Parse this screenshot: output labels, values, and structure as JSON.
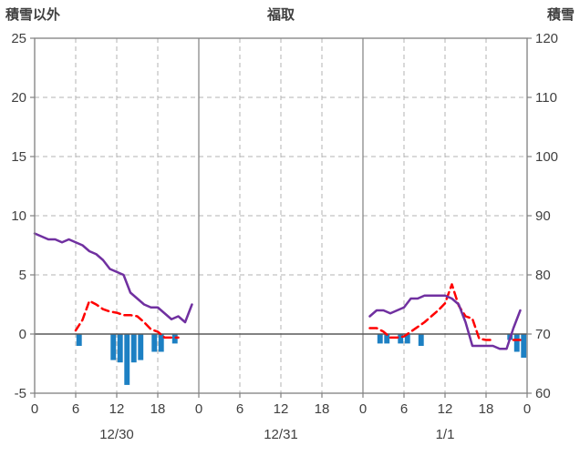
{
  "header": {
    "left_axis_title": "積雪以外",
    "station_title": "福取",
    "right_axis_title": "積雪"
  },
  "chart_data": {
    "type": "line",
    "title": "福取",
    "ylabel_left": "積雪以外",
    "ylabel_right": "積雪",
    "y_left_range": [
      -5,
      25
    ],
    "y_left_ticks": [
      25,
      20,
      15,
      10,
      5,
      0,
      -5
    ],
    "y_right_range": [
      60,
      120
    ],
    "y_right_ticks": [
      120,
      110,
      100,
      90,
      80,
      70,
      60
    ],
    "x_hours_total": 72,
    "x_tick_hours": [
      0,
      6,
      12,
      18,
      24,
      30,
      36,
      42,
      48,
      54,
      60,
      66,
      72
    ],
    "x_tick_labels": [
      "0",
      "6",
      "12",
      "18",
      "0",
      "6",
      "12",
      "18",
      "0",
      "6",
      "12",
      "18",
      "0"
    ],
    "day_boundaries_hours": [
      24,
      48
    ],
    "day_labels": [
      {
        "label": "12/30",
        "center_hour": 12
      },
      {
        "label": "12/31",
        "center_hour": 36
      },
      {
        "label": "1/1",
        "center_hour": 60
      }
    ],
    "grid": true,
    "legend": "none",
    "colors": {
      "grid": "#b3b3b3",
      "frame": "#808080",
      "zero_line": "#595959",
      "text": "#404040",
      "background": "#ffffff"
    },
    "series": [
      {
        "name": "blue-bars",
        "type": "bar",
        "axis": "left",
        "color": "#1d80c3",
        "values": [
          null,
          null,
          null,
          null,
          null,
          null,
          -1.0,
          null,
          null,
          null,
          null,
          -2.2,
          -2.4,
          -4.3,
          -2.4,
          -2.2,
          null,
          -1.5,
          -1.5,
          null,
          -0.8,
          null,
          null,
          null,
          null,
          null,
          null,
          null,
          null,
          null,
          null,
          null,
          null,
          null,
          null,
          null,
          null,
          null,
          null,
          null,
          null,
          null,
          null,
          null,
          null,
          null,
          null,
          null,
          null,
          null,
          -0.8,
          -0.8,
          null,
          -0.8,
          -0.8,
          null,
          -1.0,
          null,
          null,
          null,
          null,
          null,
          null,
          null,
          null,
          null,
          null,
          null,
          null,
          -0.5,
          -1.5,
          -2.0
        ]
      },
      {
        "name": "red-dashed-line",
        "type": "line",
        "style": "dashed",
        "axis": "left",
        "color": "#ff0000",
        "values": [
          null,
          null,
          null,
          null,
          null,
          null,
          0.3,
          1.2,
          2.8,
          2.5,
          2.1,
          1.9,
          1.8,
          1.6,
          1.6,
          1.5,
          1.0,
          0.4,
          0.2,
          -0.3,
          -0.3,
          -0.3,
          null,
          null,
          null,
          null,
          null,
          null,
          null,
          null,
          null,
          null,
          null,
          null,
          null,
          null,
          null,
          null,
          null,
          null,
          null,
          null,
          null,
          null,
          null,
          null,
          null,
          null,
          null,
          0.5,
          0.5,
          0.2,
          -0.3,
          -0.3,
          -0.2,
          0.2,
          0.6,
          1.0,
          1.5,
          2.0,
          2.6,
          4.2,
          2.4,
          1.5,
          1.3,
          -0.4,
          -0.5,
          -0.5,
          null,
          null,
          -0.5,
          -0.5
        ]
      },
      {
        "name": "purple-line",
        "type": "line",
        "style": "solid",
        "axis": "right",
        "color": "#7030a0",
        "values": [
          87,
          86.5,
          86,
          86,
          85.5,
          86,
          85.5,
          85,
          84,
          83.5,
          82.5,
          81,
          80.5,
          80,
          77,
          76,
          75,
          74.5,
          74.5,
          73.5,
          72.5,
          73,
          72,
          75,
          null,
          null,
          null,
          null,
          null,
          null,
          null,
          null,
          null,
          null,
          null,
          null,
          null,
          null,
          null,
          null,
          null,
          null,
          null,
          null,
          null,
          null,
          null,
          null,
          null,
          73,
          74,
          74,
          73.5,
          74,
          74.5,
          76,
          76,
          76.5,
          76.5,
          76.5,
          76.5,
          76,
          75,
          72,
          68,
          68,
          68,
          68,
          67.5,
          67.5,
          71,
          74
        ]
      }
    ]
  }
}
